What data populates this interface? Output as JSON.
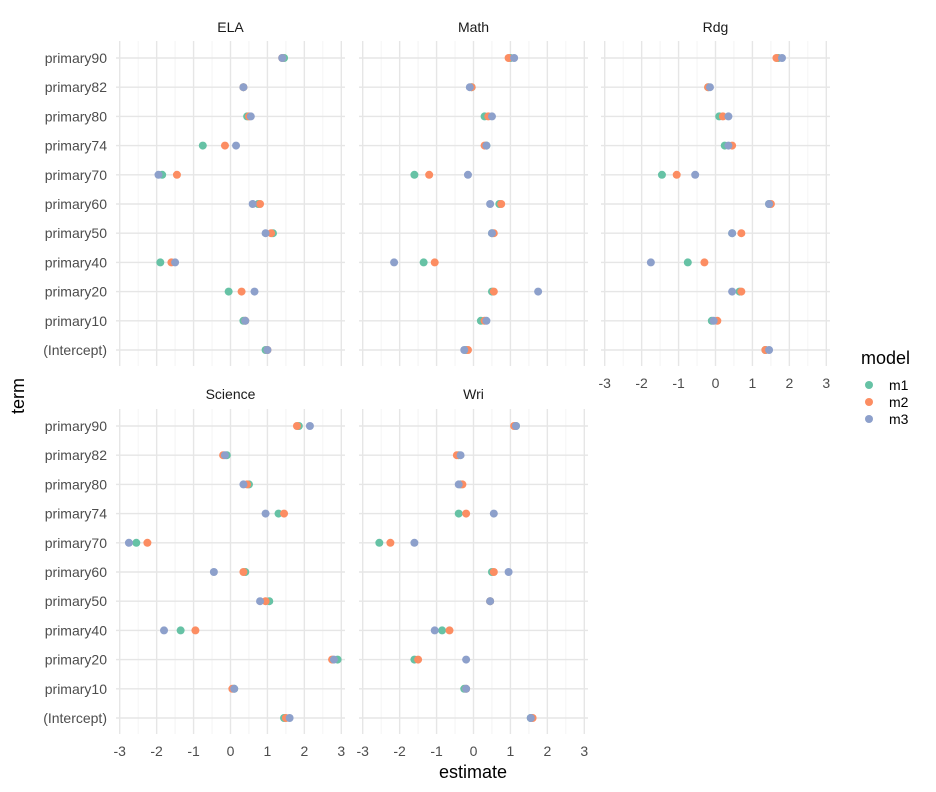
{
  "chart_data": {
    "type": "scatter",
    "xlabel": "estimate",
    "ylabel": "term",
    "xlim": [
      -3.1,
      3.1
    ],
    "x_ticks": [
      -3,
      -2,
      -1,
      0,
      1,
      2,
      3
    ],
    "terms": [
      "primary90",
      "primary82",
      "primary80",
      "primary74",
      "primary70",
      "primary60",
      "primary50",
      "primary40",
      "primary20",
      "primary10",
      "(Intercept)"
    ],
    "grid": true,
    "legend": {
      "title": "model",
      "position": "right",
      "entries": [
        {
          "name": "m1",
          "color": "#66c2a5"
        },
        {
          "name": "m2",
          "color": "#fc8d62"
        },
        {
          "name": "m3",
          "color": "#8da0cb"
        }
      ]
    },
    "panels": [
      {
        "title": "ELA",
        "series": {
          "m1": [
            1.45,
            0.35,
            0.45,
            -0.75,
            -1.85,
            0.75,
            1.15,
            -1.9,
            -0.05,
            0.35,
            0.95
          ],
          "m2": [
            1.4,
            0.35,
            0.5,
            -0.15,
            -1.45,
            0.8,
            1.1,
            -1.6,
            0.3,
            0.4,
            1.0
          ],
          "m3": [
            1.4,
            0.35,
            0.55,
            0.15,
            -1.95,
            0.6,
            0.95,
            -1.5,
            0.65,
            0.4,
            1.0
          ]
        }
      },
      {
        "title": "Math",
        "series": {
          "m1": [
            1.0,
            -0.05,
            0.3,
            0.35,
            -1.6,
            0.7,
            0.5,
            -1.35,
            0.5,
            0.2,
            -0.2
          ],
          "m2": [
            0.95,
            -0.05,
            0.4,
            0.3,
            -1.2,
            0.75,
            0.55,
            -1.05,
            0.55,
            0.3,
            -0.15
          ],
          "m3": [
            1.1,
            -0.1,
            0.5,
            0.35,
            -0.15,
            0.45,
            0.5,
            -2.15,
            1.75,
            0.35,
            -0.25
          ]
        }
      },
      {
        "title": "Rdg",
        "series": {
          "m1": [
            1.7,
            -0.2,
            0.1,
            0.25,
            -1.45,
            1.45,
            0.45,
            -0.75,
            0.65,
            -0.1,
            1.35
          ],
          "m2": [
            1.65,
            -0.2,
            0.2,
            0.45,
            -1.05,
            1.5,
            0.7,
            -0.3,
            0.7,
            0.05,
            1.35
          ],
          "m3": [
            1.8,
            -0.15,
            0.35,
            0.35,
            -0.55,
            1.45,
            0.45,
            -1.75,
            0.45,
            -0.05,
            1.45
          ]
        }
      },
      {
        "title": "Science",
        "series": {
          "m1": [
            1.85,
            -0.1,
            0.5,
            1.3,
            -2.55,
            0.4,
            1.05,
            -1.35,
            2.9,
            0.1,
            1.45
          ],
          "m2": [
            1.8,
            -0.2,
            0.45,
            1.45,
            -2.25,
            0.35,
            0.95,
            -0.95,
            2.75,
            0.05,
            1.5
          ],
          "m3": [
            2.15,
            -0.15,
            0.35,
            0.95,
            -2.75,
            -0.45,
            0.8,
            -1.8,
            2.8,
            0.1,
            1.6
          ]
        }
      },
      {
        "title": "Wri",
        "series": {
          "m1": [
            1.15,
            -0.4,
            -0.35,
            -0.4,
            -2.55,
            0.5,
            0.45,
            -0.85,
            -1.6,
            -0.25,
            1.55
          ],
          "m2": [
            1.1,
            -0.45,
            -0.3,
            -0.2,
            -2.25,
            0.55,
            0.45,
            -0.65,
            -1.5,
            -0.2,
            1.6
          ],
          "m3": [
            1.15,
            -0.35,
            -0.4,
            0.55,
            -1.6,
            0.95,
            0.45,
            -1.05,
            -0.2,
            -0.2,
            1.55
          ]
        }
      }
    ]
  }
}
